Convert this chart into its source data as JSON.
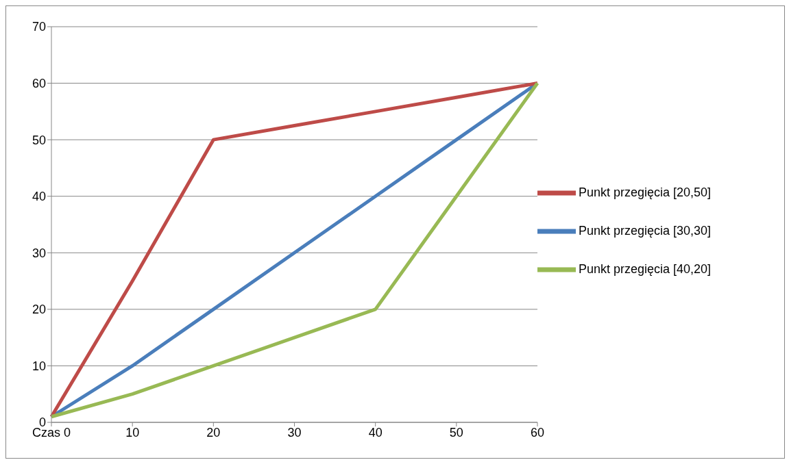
{
  "chart_data": {
    "type": "line",
    "categories": [
      "Czas 0",
      "10",
      "20",
      "30",
      "40",
      "50",
      "60"
    ],
    "series": [
      {
        "name": "Punkt przegięcia [30,30]",
        "color": "#4a7ebb",
        "values": [
          1,
          10,
          20,
          30,
          40,
          50,
          60
        ]
      },
      {
        "name": "Punkt przegięcia [20,50]",
        "color": "#be4b48",
        "values": [
          1,
          25,
          50,
          52.5,
          55,
          57.5,
          60
        ]
      },
      {
        "name": "Punkt przegięcia [40,20]",
        "color": "#98b954",
        "values": [
          1,
          5,
          10,
          15,
          20,
          40,
          60
        ]
      }
    ],
    "ylim": [
      0,
      70
    ],
    "yticks": [
      0,
      10,
      20,
      30,
      40,
      50,
      60,
      70
    ],
    "grid": "y",
    "legend": "right",
    "marker": "none",
    "line_style": "solid"
  }
}
